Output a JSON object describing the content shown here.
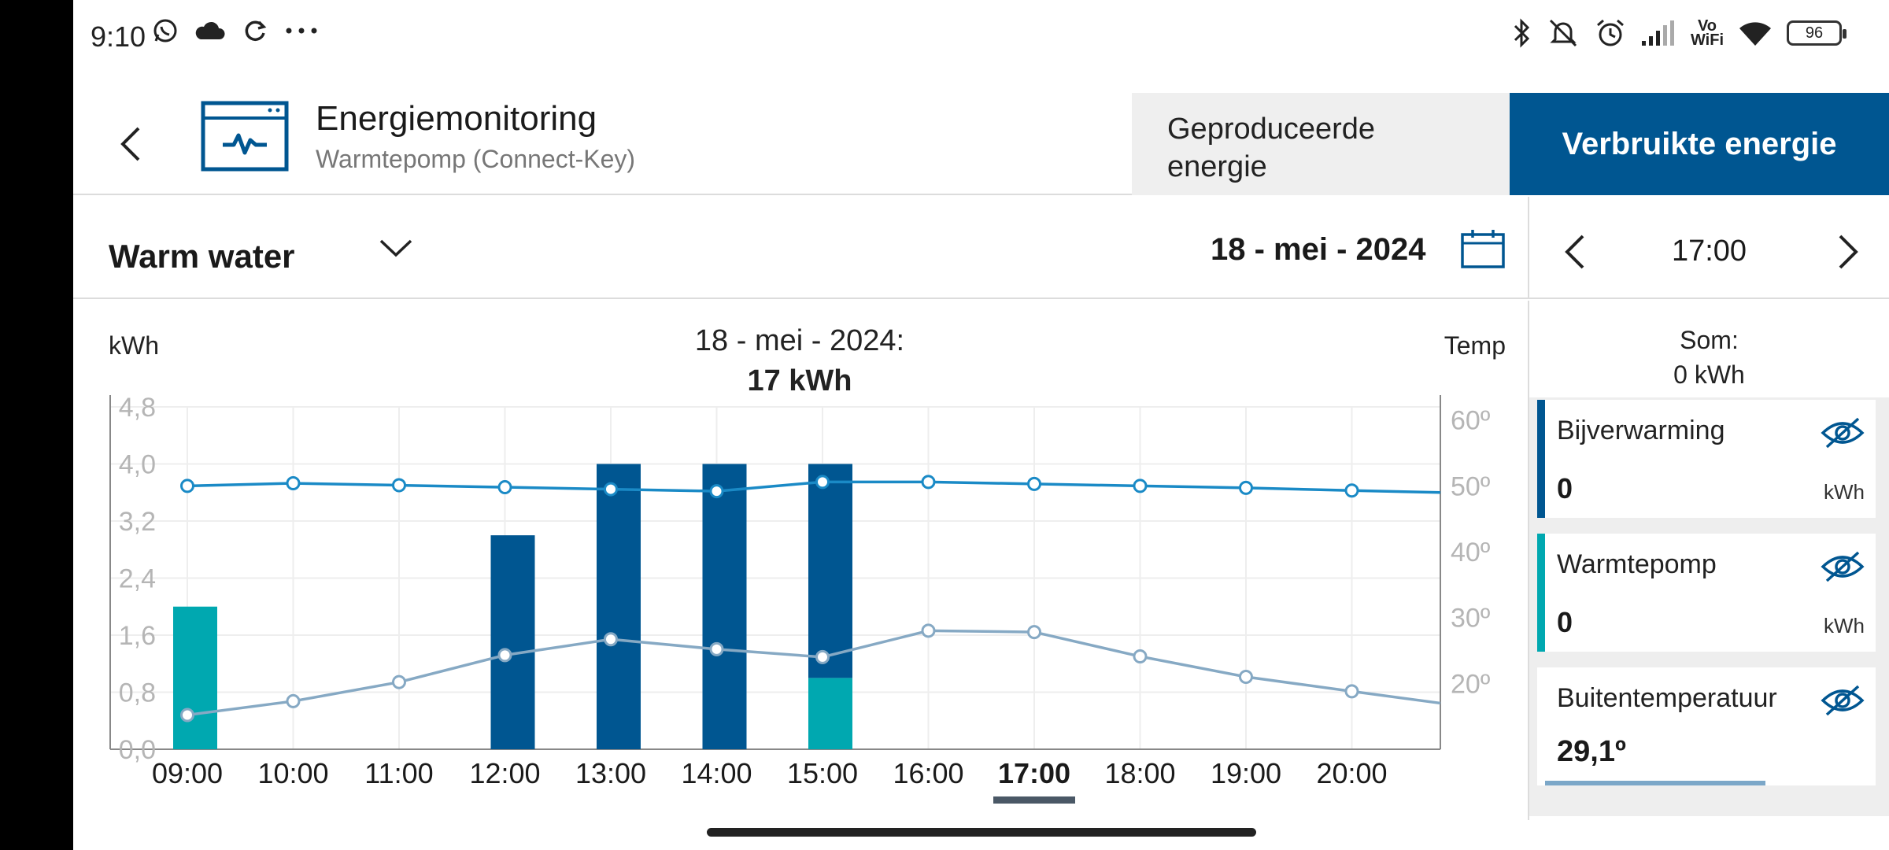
{
  "status_bar": {
    "time": "9:10",
    "left_icons": [
      "whatsapp-icon",
      "cloud-icon",
      "sync-icon",
      "more-dots-icon"
    ],
    "right_icons": [
      "bluetooth-icon",
      "mute-icon",
      "alarm-icon",
      "signal-icon",
      "vowifi-icon",
      "wifi-icon",
      "battery-icon"
    ],
    "vowifi_top": "Vo",
    "vowifi_bottom": "WiFi",
    "battery_level": "96"
  },
  "header": {
    "title": "Energiemonitoring",
    "subtitle": "Warmtepomp (Connect-Key)",
    "tabs": [
      {
        "label_line1": "Geproduceerde",
        "label_line2": "energie",
        "active": false
      },
      {
        "label": "Verbruikte energie",
        "active": true
      }
    ]
  },
  "filter": {
    "category": "Warm water",
    "date": "18 - mei - 2024"
  },
  "time_nav": {
    "current": "17:00"
  },
  "chart": {
    "y_left_label": "kWh",
    "y_right_label": "Temp",
    "title_line1": "18 - mei - 2024:",
    "title_line2": "17 kWh"
  },
  "chart_data": {
    "type": "bar",
    "categories": [
      "09:00",
      "10:00",
      "11:00",
      "12:00",
      "13:00",
      "14:00",
      "15:00",
      "16:00",
      "17:00",
      "18:00",
      "19:00",
      "20:00"
    ],
    "selected_category": "17:00",
    "series": [
      {
        "name": "Bijverwarming",
        "axis": "left",
        "type": "bar",
        "color": "#005691",
        "values": [
          0,
          0,
          0,
          3.0,
          4.0,
          4.0,
          3.0,
          0,
          0,
          0,
          0,
          0
        ]
      },
      {
        "name": "Warmtepomp",
        "axis": "left",
        "type": "bar",
        "color": "#00a8b0",
        "values": [
          2.0,
          0,
          0,
          0,
          0,
          0,
          1.0,
          0,
          0,
          0,
          0,
          0
        ]
      },
      {
        "axis": "right",
        "type": "line",
        "color": "#1a8ac6",
        "values": [
          50,
          50.4,
          50.1,
          49.8,
          49.5,
          49.2,
          50.6,
          50.6,
          50.3,
          50,
          49.7,
          49.3
        ],
        "end_value": 49.0
      },
      {
        "name": "Buitentemperatuur",
        "axis": "right",
        "type": "line",
        "color": "#86a9c4",
        "values": [
          15.2,
          17.3,
          20.2,
          24.3,
          26.7,
          25.2,
          24.0,
          28.0,
          27.8,
          24.1,
          21.0,
          18.8
        ],
        "end_value": 17.0
      }
    ],
    "y_left": {
      "label": "kWh",
      "ticks": [
        "0,0",
        "0,8",
        "1,6",
        "2,4",
        "3,2",
        "4,0",
        "4,8"
      ],
      "lim": [
        0,
        4.8
      ]
    },
    "y_right": {
      "label": "Temp",
      "ticks": [
        "20º",
        "30º",
        "40º",
        "50º",
        "60º"
      ],
      "lim": [
        10,
        62
      ]
    },
    "grid": true
  },
  "right_panel": {
    "sum_label": "Som:",
    "sum_value": "0 kWh",
    "cards": [
      {
        "title": "Bijverwarming",
        "value": "0",
        "unit": "kWh",
        "color": "#005691"
      },
      {
        "title": "Warmtepomp",
        "value": "0",
        "unit": "kWh",
        "color": "#00a8b0"
      }
    ],
    "outdoor": {
      "title": "Buitentemperatuur",
      "value": "29,1º"
    }
  }
}
